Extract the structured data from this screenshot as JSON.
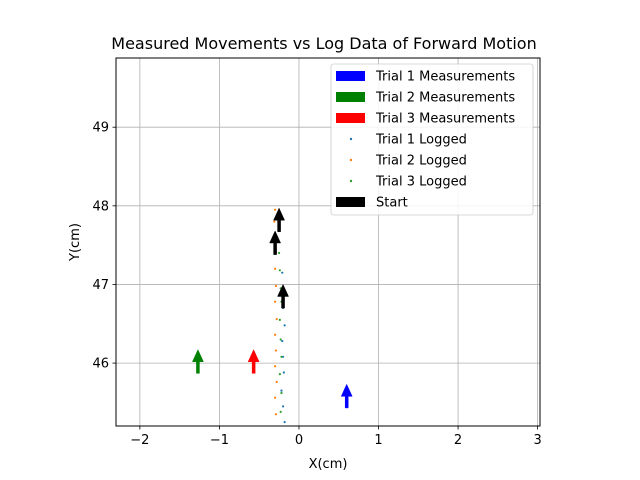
{
  "chart_data": {
    "type": "scatter",
    "title": "Measured Movements vs Log Data of Forward Motion",
    "xlabel": "X(cm)",
    "ylabel": "Y(cm)",
    "xlim": [
      -2.3,
      3.03
    ],
    "ylim": [
      45.2,
      49.88
    ],
    "xticks": [
      -2,
      -1,
      0,
      1,
      2,
      3
    ],
    "yticks": [
      46,
      47,
      48,
      49
    ],
    "grid": true,
    "legend_position": "top-right",
    "arrow_series": [
      {
        "name": "Trial 1 Measurements",
        "color": "#0000ff",
        "x": 0.6,
        "y": 45.43,
        "dx": 0,
        "dy": 0.3
      },
      {
        "name": "Trial 2 Measurements",
        "color": "#008000",
        "x": -1.27,
        "y": 45.87,
        "dx": 0,
        "dy": 0.3
      },
      {
        "name": "Trial 3 Measurements",
        "color": "#ff0000",
        "x": -0.57,
        "y": 45.87,
        "dx": 0,
        "dy": 0.3
      }
    ],
    "logged_series": [
      {
        "name": "Trial 1 Logged",
        "color": "#1f77b4",
        "x": [
          -0.18,
          -0.2,
          -0.22,
          -0.19,
          -0.2,
          -0.21,
          -0.18,
          -0.2,
          -0.22,
          -0.21
        ],
        "y": [
          45.25,
          45.45,
          45.65,
          45.88,
          46.08,
          46.28,
          46.48,
          46.7,
          46.92,
          47.15
        ]
      },
      {
        "name": "Trial 2 Logged",
        "color": "#ff7f0e",
        "x": [
          -0.29,
          -0.3,
          -0.28,
          -0.3,
          -0.29,
          -0.3,
          -0.28,
          -0.3,
          -0.29,
          -0.3,
          -0.29,
          -0.3,
          -0.31,
          -0.3
        ],
        "y": [
          45.35,
          45.56,
          45.76,
          45.96,
          46.16,
          46.36,
          46.56,
          46.78,
          46.98,
          47.2,
          47.42,
          47.6,
          47.8,
          47.95
        ]
      },
      {
        "name": "Trial 3 Logged",
        "color": "#2ca02c",
        "x": [
          -0.23,
          -0.22,
          -0.24,
          -0.22,
          -0.23,
          -0.24,
          -0.22,
          -0.23,
          -0.24,
          -0.25
        ],
        "y": [
          45.38,
          45.62,
          45.86,
          46.08,
          46.3,
          46.55,
          46.78,
          46.95,
          47.18,
          47.4
        ]
      }
    ],
    "start": {
      "name": "Start",
      "color": "#000000",
      "arrows": [
        {
          "x": -0.25,
          "y": 47.67,
          "dx": 0,
          "dy": 0.3
        },
        {
          "x": -0.3,
          "y": 47.38,
          "dx": 0,
          "dy": 0.3
        },
        {
          "x": -0.2,
          "y": 46.7,
          "dx": 0,
          "dy": 0.3
        }
      ]
    }
  }
}
